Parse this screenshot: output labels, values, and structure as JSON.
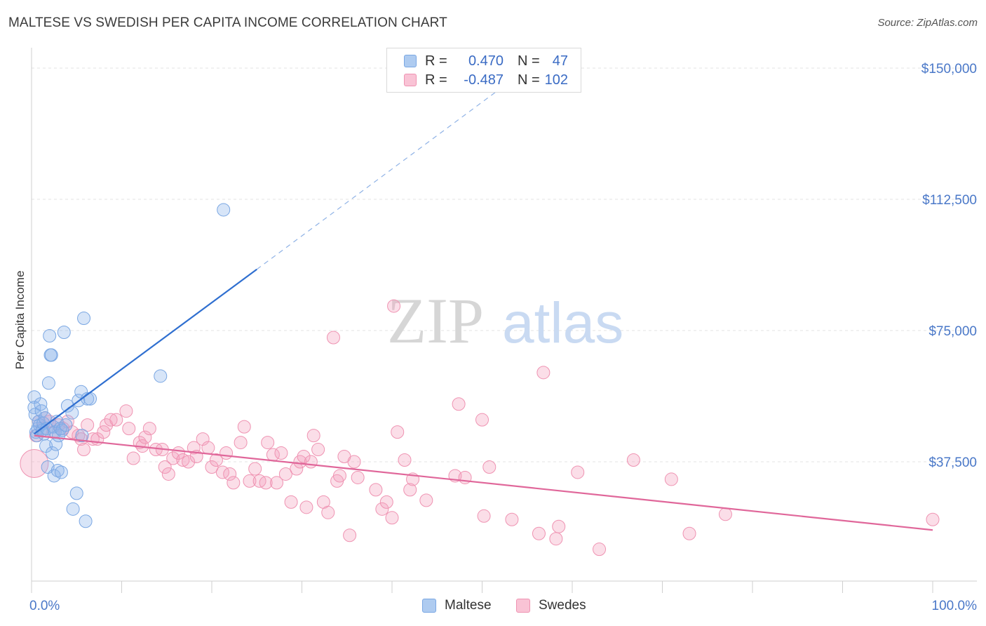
{
  "title": "MALTESE VS SWEDISH PER CAPITA INCOME CORRELATION CHART",
  "source": "Source: ZipAtlas.com",
  "watermark": {
    "zip": "ZIP",
    "atlas": "atlas"
  },
  "legend": {
    "rows": [
      {
        "r_label": "R =",
        "r_value": "0.470",
        "n_label": "N =",
        "n_value": "47",
        "color": "#aecbf0",
        "border": "#7aa7e3"
      },
      {
        "r_label": "R =",
        "r_value": "-0.487",
        "n_label": "N =",
        "n_value": "102",
        "color": "#f9c3d5",
        "border": "#ef93b2"
      }
    ]
  },
  "bottom_legend": [
    {
      "label": "Maltese",
      "color": "#aecbf0",
      "border": "#7aa7e3"
    },
    {
      "label": "Swedes",
      "color": "#f9c3d5",
      "border": "#ef93b2"
    }
  ],
  "chart_data": {
    "type": "scatter",
    "title": "MALTESE VS SWEDISH PER CAPITA INCOME CORRELATION CHART",
    "ylabel": "Per Capita Income",
    "xlabel": "",
    "xlim": [
      0,
      100
    ],
    "ylim": [
      0,
      155000
    ],
    "x_tick_labels": [
      "0.0%",
      "100.0%"
    ],
    "y_ticks": [
      {
        "value": 37500,
        "label": "$37,500"
      },
      {
        "value": 75000,
        "label": "$75,000"
      },
      {
        "value": 112500,
        "label": "$112,500"
      },
      {
        "value": 150000,
        "label": "$150,000"
      }
    ],
    "grid": true,
    "legend_position": "top-center",
    "series": [
      {
        "name": "Maltese",
        "color": "#7aa7e3",
        "line_color": "#2f6fd0",
        "trend": {
          "x0": 0.3,
          "y0": 45500,
          "x1": 25.0,
          "y1": 92500,
          "dashed_to_x": 53.0,
          "dashed_to_y": 146000
        },
        "points": [
          [
            0.3,
            56000
          ],
          [
            0.3,
            53000
          ],
          [
            0.4,
            51000
          ],
          [
            0.5,
            46000
          ],
          [
            0.6,
            45000
          ],
          [
            0.7,
            47000
          ],
          [
            0.8,
            49000
          ],
          [
            0.9,
            48000
          ],
          [
            1.0,
            54000
          ],
          [
            1.1,
            52000
          ],
          [
            1.2,
            46500
          ],
          [
            1.3,
            48500
          ],
          [
            1.4,
            45500
          ],
          [
            1.5,
            50000
          ],
          [
            1.6,
            42000
          ],
          [
            1.7,
            47000
          ],
          [
            1.8,
            36000
          ],
          [
            1.9,
            60000
          ],
          [
            2.0,
            73500
          ],
          [
            2.1,
            68000
          ],
          [
            2.2,
            68000
          ],
          [
            2.3,
            40000
          ],
          [
            2.4,
            47500
          ],
          [
            2.5,
            33500
          ],
          [
            2.6,
            46000
          ],
          [
            2.7,
            42500
          ],
          [
            2.8,
            49000
          ],
          [
            2.9,
            35000
          ],
          [
            3.0,
            45000
          ],
          [
            3.2,
            47000
          ],
          [
            3.4,
            46500
          ],
          [
            3.6,
            74500
          ],
          [
            3.3,
            34500
          ],
          [
            4.0,
            53500
          ],
          [
            4.5,
            51500
          ],
          [
            5.0,
            28500
          ],
          [
            5.2,
            55000
          ],
          [
            5.5,
            57500
          ],
          [
            5.6,
            45000
          ],
          [
            5.8,
            78500
          ],
          [
            6.0,
            20500
          ],
          [
            6.2,
            55500
          ],
          [
            6.5,
            55500
          ],
          [
            4.6,
            24000
          ],
          [
            14.3,
            62000
          ],
          [
            21.3,
            109500
          ],
          [
            3.8,
            48000
          ]
        ]
      },
      {
        "name": "Swedes",
        "color": "#ef93b2",
        "line_color": "#e0679a",
        "trend": {
          "x0": 0.3,
          "y0": 45000,
          "x1": 100.0,
          "y1": 18000
        },
        "points": [
          [
            0.3,
            37000
          ],
          [
            0.5,
            45000
          ],
          [
            0.8,
            49000
          ],
          [
            1.2,
            47000
          ],
          [
            1.5,
            50000
          ],
          [
            2.0,
            49000
          ],
          [
            2.4,
            46000
          ],
          [
            3.0,
            48000
          ],
          [
            3.5,
            47000
          ],
          [
            4.0,
            49000
          ],
          [
            4.5,
            46000
          ],
          [
            5.2,
            45000
          ],
          [
            5.5,
            44000
          ],
          [
            5.8,
            41000
          ],
          [
            6.2,
            48000
          ],
          [
            6.8,
            44000
          ],
          [
            7.3,
            44000
          ],
          [
            8.0,
            46000
          ],
          [
            8.3,
            48000
          ],
          [
            8.8,
            49500
          ],
          [
            9.4,
            49500
          ],
          [
            10.5,
            52000
          ],
          [
            10.8,
            47000
          ],
          [
            11.3,
            38500
          ],
          [
            12.0,
            43000
          ],
          [
            12.3,
            42000
          ],
          [
            12.6,
            44500
          ],
          [
            13.1,
            47000
          ],
          [
            13.8,
            41000
          ],
          [
            14.5,
            41000
          ],
          [
            14.8,
            36000
          ],
          [
            15.2,
            34000
          ],
          [
            15.7,
            38500
          ],
          [
            16.3,
            40000
          ],
          [
            16.8,
            38000
          ],
          [
            17.4,
            37500
          ],
          [
            18.0,
            41500
          ],
          [
            18.3,
            39000
          ],
          [
            19.0,
            44000
          ],
          [
            19.6,
            41500
          ],
          [
            20.0,
            36000
          ],
          [
            20.5,
            38000
          ],
          [
            21.2,
            34500
          ],
          [
            21.6,
            40000
          ],
          [
            22.0,
            34000
          ],
          [
            22.4,
            31500
          ],
          [
            23.2,
            43000
          ],
          [
            23.6,
            47500
          ],
          [
            24.2,
            32000
          ],
          [
            24.8,
            35500
          ],
          [
            25.3,
            32000
          ],
          [
            26.0,
            31500
          ],
          [
            26.2,
            43000
          ],
          [
            26.8,
            39500
          ],
          [
            27.2,
            31500
          ],
          [
            27.7,
            40000
          ],
          [
            28.2,
            34000
          ],
          [
            28.8,
            26000
          ],
          [
            29.4,
            35500
          ],
          [
            29.8,
            37500
          ],
          [
            30.2,
            39000
          ],
          [
            30.5,
            24500
          ],
          [
            31.0,
            37500
          ],
          [
            31.3,
            45000
          ],
          [
            31.8,
            41000
          ],
          [
            32.4,
            26000
          ],
          [
            32.9,
            23000
          ],
          [
            33.5,
            73000
          ],
          [
            33.9,
            32000
          ],
          [
            34.2,
            33500
          ],
          [
            34.7,
            39000
          ],
          [
            35.3,
            16500
          ],
          [
            35.8,
            37500
          ],
          [
            36.2,
            33000
          ],
          [
            38.2,
            29500
          ],
          [
            38.9,
            24000
          ],
          [
            39.4,
            26000
          ],
          [
            40.0,
            21500
          ],
          [
            40.2,
            82000
          ],
          [
            40.6,
            46000
          ],
          [
            41.4,
            38000
          ],
          [
            42.0,
            29500
          ],
          [
            42.3,
            32500
          ],
          [
            43.8,
            26500
          ],
          [
            47.0,
            33500
          ],
          [
            47.4,
            54000
          ],
          [
            48.1,
            33000
          ],
          [
            50.0,
            49500
          ],
          [
            50.2,
            22000
          ],
          [
            50.8,
            36000
          ],
          [
            53.3,
            21000
          ],
          [
            56.3,
            17000
          ],
          [
            56.8,
            63000
          ],
          [
            58.2,
            15500
          ],
          [
            58.5,
            19000
          ],
          [
            60.6,
            34500
          ],
          [
            63.0,
            12500
          ],
          [
            66.8,
            38000
          ],
          [
            71.0,
            32500
          ],
          [
            73.0,
            17000
          ],
          [
            77.0,
            22500
          ],
          [
            100.0,
            21000
          ]
        ]
      }
    ]
  }
}
